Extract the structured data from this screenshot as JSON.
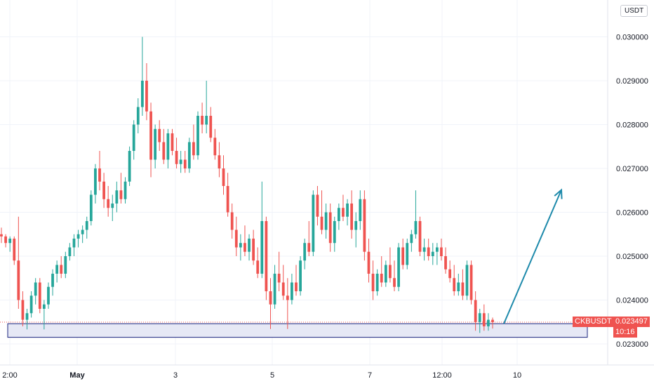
{
  "currency_button": "USDT",
  "symbol_badge": "CKBUSDT",
  "price_badge": "0.023497",
  "countdown_badge": "10:16",
  "colors": {
    "up": "#26a69a",
    "down": "#ef5350",
    "zone_fill": "#e6e8f5",
    "zone_stroke": "#1a237e",
    "arrow": "#1e8aab"
  },
  "chart_data": {
    "type": "candlestick",
    "title": "",
    "xlabel": "",
    "ylabel": "",
    "symbol": "CKBUSDT",
    "last_price": 0.023497,
    "ylim": [
      0.0226,
      0.0306
    ],
    "y_ticks": [
      "0.030000",
      "0.029000",
      "0.028000",
      "0.027000",
      "0.026000",
      "0.025000",
      "0.024000",
      "0.023000"
    ],
    "x_ticks": [
      "2:00",
      "May",
      "3",
      "5",
      "7",
      "12:00",
      "10"
    ],
    "grid": true,
    "support_zone": {
      "low": 0.02315,
      "high": 0.02346
    },
    "projection_arrow": {
      "from": 0.02346,
      "to": 0.02651
    },
    "candles": [
      [
        0.0255,
        0.02565,
        0.0253,
        0.02545
      ],
      [
        0.02545,
        0.0255,
        0.0252,
        0.0253
      ],
      [
        0.0253,
        0.02545,
        0.0251,
        0.0254
      ],
      [
        0.0254,
        0.02545,
        0.0248,
        0.0249
      ],
      [
        0.0249,
        0.0259,
        0.0238,
        0.024
      ],
      [
        0.024,
        0.0242,
        0.0234,
        0.02355
      ],
      [
        0.02355,
        0.0238,
        0.02333,
        0.0237
      ],
      [
        0.0237,
        0.0242,
        0.0236,
        0.0241
      ],
      [
        0.0241,
        0.0245,
        0.0239,
        0.0244
      ],
      [
        0.0244,
        0.0245,
        0.0237,
        0.0238
      ],
      [
        0.0238,
        0.024,
        0.02333,
        0.0239
      ],
      [
        0.0239,
        0.0244,
        0.0238,
        0.0243
      ],
      [
        0.0243,
        0.0247,
        0.0241,
        0.0246
      ],
      [
        0.0246,
        0.0249,
        0.0244,
        0.0248
      ],
      [
        0.0248,
        0.025,
        0.0245,
        0.0246
      ],
      [
        0.0246,
        0.0251,
        0.0245,
        0.025
      ],
      [
        0.025,
        0.0253,
        0.0249,
        0.0252
      ],
      [
        0.0252,
        0.0255,
        0.025,
        0.0254
      ],
      [
        0.0254,
        0.0256,
        0.0252,
        0.0255
      ],
      [
        0.0255,
        0.0257,
        0.0253,
        0.0256
      ],
      [
        0.0256,
        0.0259,
        0.0254,
        0.0258
      ],
      [
        0.0258,
        0.0265,
        0.0257,
        0.0264
      ],
      [
        0.0264,
        0.0271,
        0.0262,
        0.027
      ],
      [
        0.027,
        0.0274,
        0.0265,
        0.0267
      ],
      [
        0.0267,
        0.0269,
        0.0261,
        0.0263
      ],
      [
        0.0263,
        0.0266,
        0.0259,
        0.0261
      ],
      [
        0.0261,
        0.0264,
        0.0258,
        0.0262
      ],
      [
        0.0262,
        0.0267,
        0.026,
        0.0265
      ],
      [
        0.0265,
        0.0269,
        0.0262,
        0.0263
      ],
      [
        0.0263,
        0.0268,
        0.0262,
        0.0267
      ],
      [
        0.0267,
        0.0275,
        0.0266,
        0.0274
      ],
      [
        0.0274,
        0.0281,
        0.0272,
        0.028
      ],
      [
        0.028,
        0.0286,
        0.0278,
        0.0284
      ],
      [
        0.0284,
        0.03,
        0.0282,
        0.029
      ],
      [
        0.029,
        0.0294,
        0.0281,
        0.0283
      ],
      [
        0.0283,
        0.0285,
        0.0268,
        0.0272
      ],
      [
        0.0272,
        0.028,
        0.027,
        0.0279
      ],
      [
        0.0279,
        0.0281,
        0.0274,
        0.0276
      ],
      [
        0.0276,
        0.0279,
        0.0271,
        0.0272
      ],
      [
        0.0272,
        0.0279,
        0.027,
        0.0278
      ],
      [
        0.0278,
        0.0279,
        0.0273,
        0.0274
      ],
      [
        0.0274,
        0.0277,
        0.027,
        0.0271
      ],
      [
        0.0271,
        0.0274,
        0.0269,
        0.0272
      ],
      [
        0.0272,
        0.0274,
        0.0269,
        0.027
      ],
      [
        0.027,
        0.0277,
        0.0269,
        0.0276
      ],
      [
        0.0276,
        0.028,
        0.0272,
        0.0273
      ],
      [
        0.0273,
        0.0283,
        0.0272,
        0.0282
      ],
      [
        0.0282,
        0.0285,
        0.0278,
        0.028
      ],
      [
        0.028,
        0.029,
        0.0278,
        0.0282
      ],
      [
        0.0282,
        0.0284,
        0.0276,
        0.0277
      ],
      [
        0.0277,
        0.0279,
        0.0272,
        0.0273
      ],
      [
        0.0273,
        0.0276,
        0.0268,
        0.027
      ],
      [
        0.027,
        0.0273,
        0.0264,
        0.0266
      ],
      [
        0.0266,
        0.0269,
        0.0259,
        0.026
      ],
      [
        0.026,
        0.0262,
        0.0254,
        0.0256
      ],
      [
        0.0256,
        0.0259,
        0.025,
        0.0252
      ],
      [
        0.0252,
        0.0255,
        0.0249,
        0.0253
      ],
      [
        0.0253,
        0.0257,
        0.025,
        0.0251
      ],
      [
        0.0251,
        0.0255,
        0.0249,
        0.0254
      ],
      [
        0.0254,
        0.0256,
        0.0248,
        0.0249
      ],
      [
        0.0249,
        0.0252,
        0.0245,
        0.0246
      ],
      [
        0.0246,
        0.0267,
        0.0245,
        0.0258
      ],
      [
        0.0258,
        0.0259,
        0.024,
        0.0242
      ],
      [
        0.0242,
        0.0245,
        0.02334,
        0.0239
      ],
      [
        0.0239,
        0.0248,
        0.0238,
        0.0246
      ],
      [
        0.0246,
        0.0251,
        0.0242,
        0.0244
      ],
      [
        0.0244,
        0.0248,
        0.024,
        0.0241
      ],
      [
        0.0241,
        0.0245,
        0.02334,
        0.024
      ],
      [
        0.024,
        0.0246,
        0.0239,
        0.0244
      ],
      [
        0.0244,
        0.0248,
        0.0241,
        0.0242
      ],
      [
        0.0242,
        0.025,
        0.0241,
        0.0249
      ],
      [
        0.0249,
        0.0254,
        0.0247,
        0.0253
      ],
      [
        0.0253,
        0.0258,
        0.025,
        0.0251
      ],
      [
        0.0251,
        0.0265,
        0.025,
        0.0264
      ],
      [
        0.0264,
        0.0266,
        0.0257,
        0.0259
      ],
      [
        0.0259,
        0.0265,
        0.0255,
        0.0256
      ],
      [
        0.0256,
        0.0262,
        0.0254,
        0.026
      ],
      [
        0.026,
        0.0262,
        0.0251,
        0.0253
      ],
      [
        0.0253,
        0.0259,
        0.0251,
        0.0258
      ],
      [
        0.0258,
        0.0262,
        0.0256,
        0.0261
      ],
      [
        0.0261,
        0.0264,
        0.0258,
        0.0259
      ],
      [
        0.0259,
        0.0263,
        0.0257,
        0.0262
      ],
      [
        0.0262,
        0.0265,
        0.0254,
        0.0256
      ],
      [
        0.0256,
        0.026,
        0.0252,
        0.0258
      ],
      [
        0.0258,
        0.0265,
        0.0256,
        0.0263
      ],
      [
        0.0263,
        0.0265,
        0.0249,
        0.0251
      ],
      [
        0.0251,
        0.0254,
        0.0244,
        0.0246
      ],
      [
        0.0246,
        0.0249,
        0.024,
        0.0242
      ],
      [
        0.0242,
        0.0247,
        0.0241,
        0.0246
      ],
      [
        0.0246,
        0.025,
        0.0243,
        0.0244
      ],
      [
        0.0244,
        0.0249,
        0.0243,
        0.0248
      ],
      [
        0.0248,
        0.0252,
        0.0244,
        0.0245
      ],
      [
        0.0245,
        0.0249,
        0.0242,
        0.0243
      ],
      [
        0.0243,
        0.0253,
        0.0242,
        0.0252
      ],
      [
        0.0252,
        0.0254,
        0.0247,
        0.0248
      ],
      [
        0.0248,
        0.0254,
        0.0247,
        0.0253
      ],
      [
        0.0253,
        0.0256,
        0.0251,
        0.0255
      ],
      [
        0.0255,
        0.0265,
        0.0254,
        0.0258
      ],
      [
        0.0258,
        0.0259,
        0.025,
        0.0251
      ],
      [
        0.0251,
        0.0254,
        0.0249,
        0.0252
      ],
      [
        0.0252,
        0.0254,
        0.0249,
        0.025
      ],
      [
        0.025,
        0.0253,
        0.0248,
        0.0251
      ],
      [
        0.0251,
        0.0253,
        0.0248,
        0.0252
      ],
      [
        0.0252,
        0.0254,
        0.0249,
        0.025
      ],
      [
        0.025,
        0.0252,
        0.0246,
        0.0247
      ],
      [
        0.0247,
        0.0249,
        0.0244,
        0.0245
      ],
      [
        0.0245,
        0.0248,
        0.0241,
        0.0242
      ],
      [
        0.0242,
        0.0246,
        0.0241,
        0.0244
      ],
      [
        0.0244,
        0.0247,
        0.024,
        0.0241
      ],
      [
        0.0241,
        0.0249,
        0.024,
        0.0248
      ],
      [
        0.0248,
        0.0249,
        0.0239,
        0.024
      ],
      [
        0.024,
        0.0242,
        0.0233,
        0.0235
      ],
      [
        0.0235,
        0.0238,
        0.02325,
        0.0237
      ],
      [
        0.0237,
        0.0239,
        0.0233,
        0.0234
      ],
      [
        0.0234,
        0.0237,
        0.0233,
        0.02355
      ],
      [
        0.02355,
        0.0236,
        0.02335,
        0.023497
      ]
    ]
  }
}
